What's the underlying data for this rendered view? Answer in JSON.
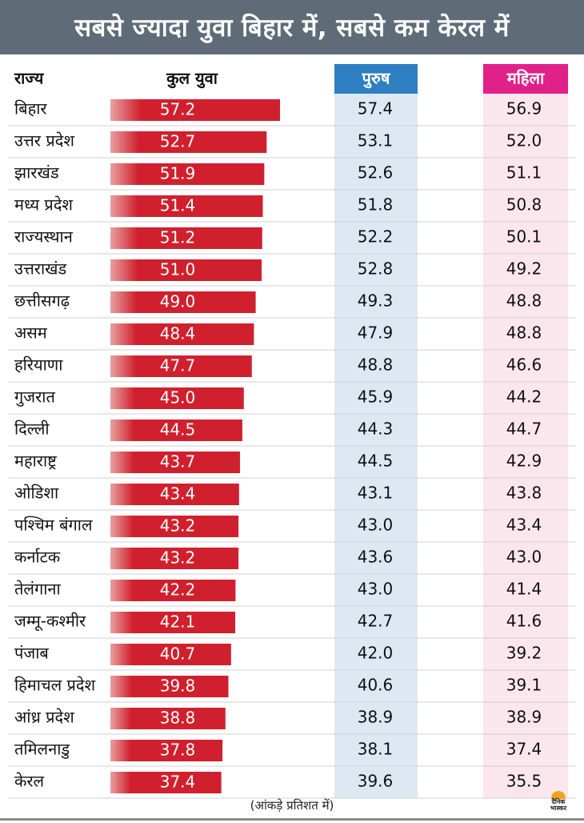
{
  "title": "सबसे ज्यादा युवा बिहार में, सबसे कम केरल में",
  "headers": {
    "state": "राज्य",
    "total": "कुल युवा",
    "male": "पुरुष",
    "female": "महिला"
  },
  "footnote": "(आंकड़े प्रतिशत में)",
  "logo": {
    "line1": "दैनिक",
    "line2": "भास्कर"
  },
  "colors": {
    "title_bg": "#5f6c78",
    "bar": "#d0202e",
    "male_col_bg": "#dde8f3",
    "male_header_bg": "#2d7fc1",
    "female_col_bg": "#fbe6ee",
    "female_header_bg": "#e0218a"
  },
  "chart_data": {
    "type": "table",
    "categories": [
      "बिहार",
      "उत्तर प्रदेश",
      "झारखंड",
      "मध्य प्रदेश",
      "राज्यस्थान",
      "उत्तराखंड",
      "छत्तीसगढ़",
      "असम",
      "हरियाणा",
      "गुजरात",
      "दिल्ली",
      "महाराष्ट्र",
      "ओडिशा",
      "पश्चिम बंगाल",
      "कर्नाटक",
      "तेलंगाना",
      "जम्मू-कश्मीर",
      "पंजाब",
      "हिमाचल प्रदेश",
      "आंध्र प्रदेश",
      "तमिलनाडु",
      "केरल"
    ],
    "series": [
      {
        "name": "कुल युवा",
        "values": [
          "57.2",
          "52.7",
          "51.9",
          "51.4",
          "51.2",
          "51.0",
          "49.0",
          "48.4",
          "47.7",
          "45.0",
          "44.5",
          "43.7",
          "43.4",
          "43.2",
          "43.2",
          "42.2",
          "42.1",
          "40.7",
          "39.8",
          "38.8",
          "37.8",
          "37.4"
        ]
      },
      {
        "name": "पुरुष",
        "values": [
          "57.4",
          "53.1",
          "52.6",
          "51.8",
          "52.2",
          "52.8",
          "49.3",
          "47.9",
          "48.8",
          "45.9",
          "44.3",
          "44.5",
          "43.1",
          "43.0",
          "43.6",
          "43.0",
          "42.7",
          "42.0",
          "40.6",
          "38.9",
          "38.1",
          "39.6"
        ]
      },
      {
        "name": "महिला",
        "values": [
          "56.9",
          "52.0",
          "51.1",
          "50.8",
          "50.1",
          "49.2",
          "48.8",
          "48.8",
          "46.6",
          "44.2",
          "44.7",
          "42.9",
          "43.8",
          "43.4",
          "43.0",
          "41.4",
          "41.6",
          "39.2",
          "39.1",
          "38.9",
          "37.4",
          "35.5"
        ]
      }
    ]
  }
}
